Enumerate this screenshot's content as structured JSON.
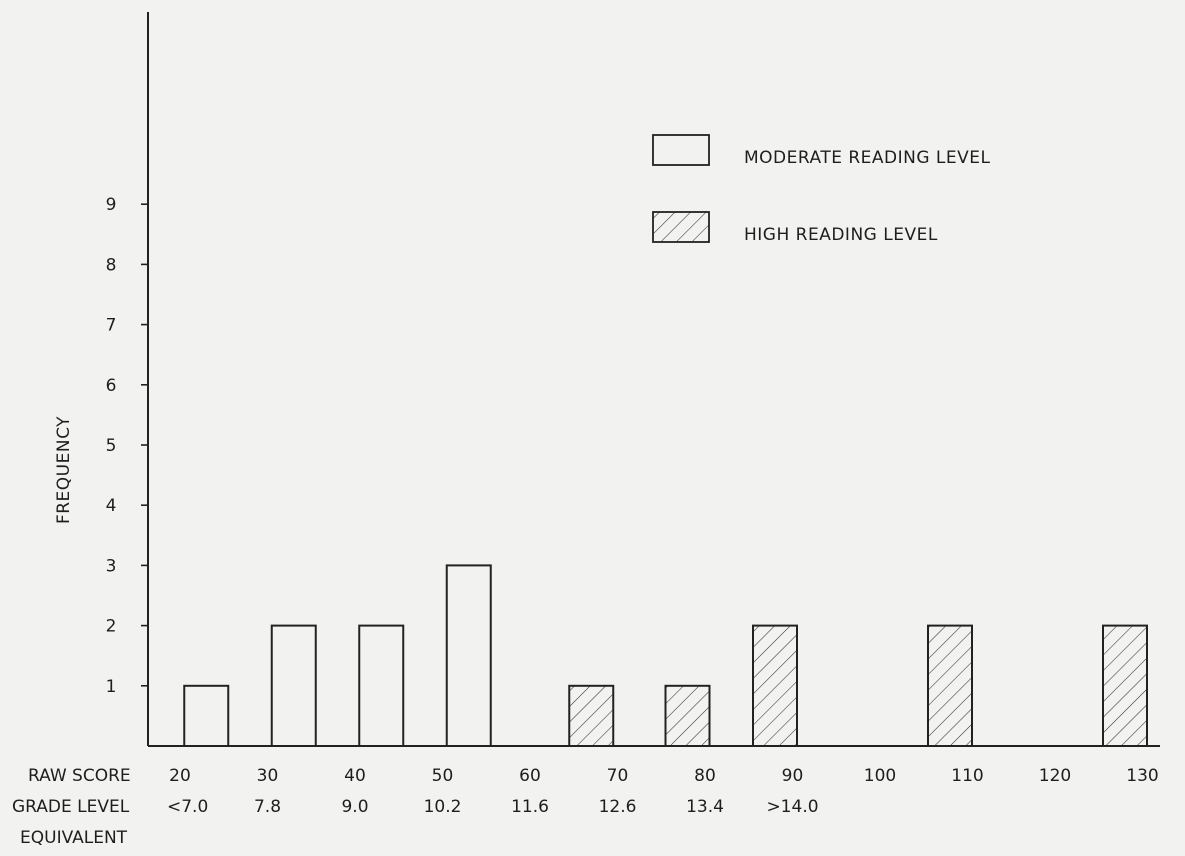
{
  "chart_data": {
    "type": "bar",
    "ylabel": "FREQUENCY",
    "ylim": [
      0,
      12
    ],
    "y_ticks": [
      1,
      2,
      3,
      4,
      5,
      6,
      7,
      8,
      9
    ],
    "x_axis_label": "RAW SCORE",
    "x_ticks": [
      {
        "label": "20",
        "value": 20
      },
      {
        "label": "30",
        "value": 30
      },
      {
        "label": "40",
        "value": 40
      },
      {
        "label": "50",
        "value": 50
      },
      {
        "label": "60",
        "value": 60
      },
      {
        "label": "70",
        "value": 70
      },
      {
        "label": "80",
        "value": 80
      },
      {
        "label": "90",
        "value": 90
      },
      {
        "label": "100",
        "value": 100
      },
      {
        "label": "110",
        "value": 110
      },
      {
        "label": "120",
        "value": 120
      },
      {
        "label": "130",
        "value": 130
      }
    ],
    "grade_level_label": "GRADE LEVEL",
    "grade_level_label_2": "EQUIVALENT",
    "grade_levels": [
      {
        "label": "<7.0",
        "at": 20
      },
      {
        "label": "7.8",
        "at": 30
      },
      {
        "label": "9.0",
        "at": 40
      },
      {
        "label": "10.2",
        "at": 50
      },
      {
        "label": "11.6",
        "at": 60
      },
      {
        "label": "12.6",
        "at": 70
      },
      {
        "label": "13.4",
        "at": 80
      },
      {
        "label": ">14.0",
        "at": 90
      }
    ],
    "series": [
      {
        "name": "MODERATE READING LEVEL",
        "pattern": "open",
        "bars": [
          {
            "x": 23,
            "value": 1
          },
          {
            "x": 33,
            "value": 2
          },
          {
            "x": 43,
            "value": 2
          },
          {
            "x": 53,
            "value": 3
          }
        ]
      },
      {
        "name": "HIGH READING LEVEL",
        "pattern": "hatched",
        "bars": [
          {
            "x": 67,
            "value": 1
          },
          {
            "x": 78,
            "value": 1
          },
          {
            "x": 88,
            "value": 2
          },
          {
            "x": 108,
            "value": 2
          },
          {
            "x": 128,
            "value": 2
          }
        ]
      }
    ],
    "legend_position": "top-right",
    "grid": false
  }
}
